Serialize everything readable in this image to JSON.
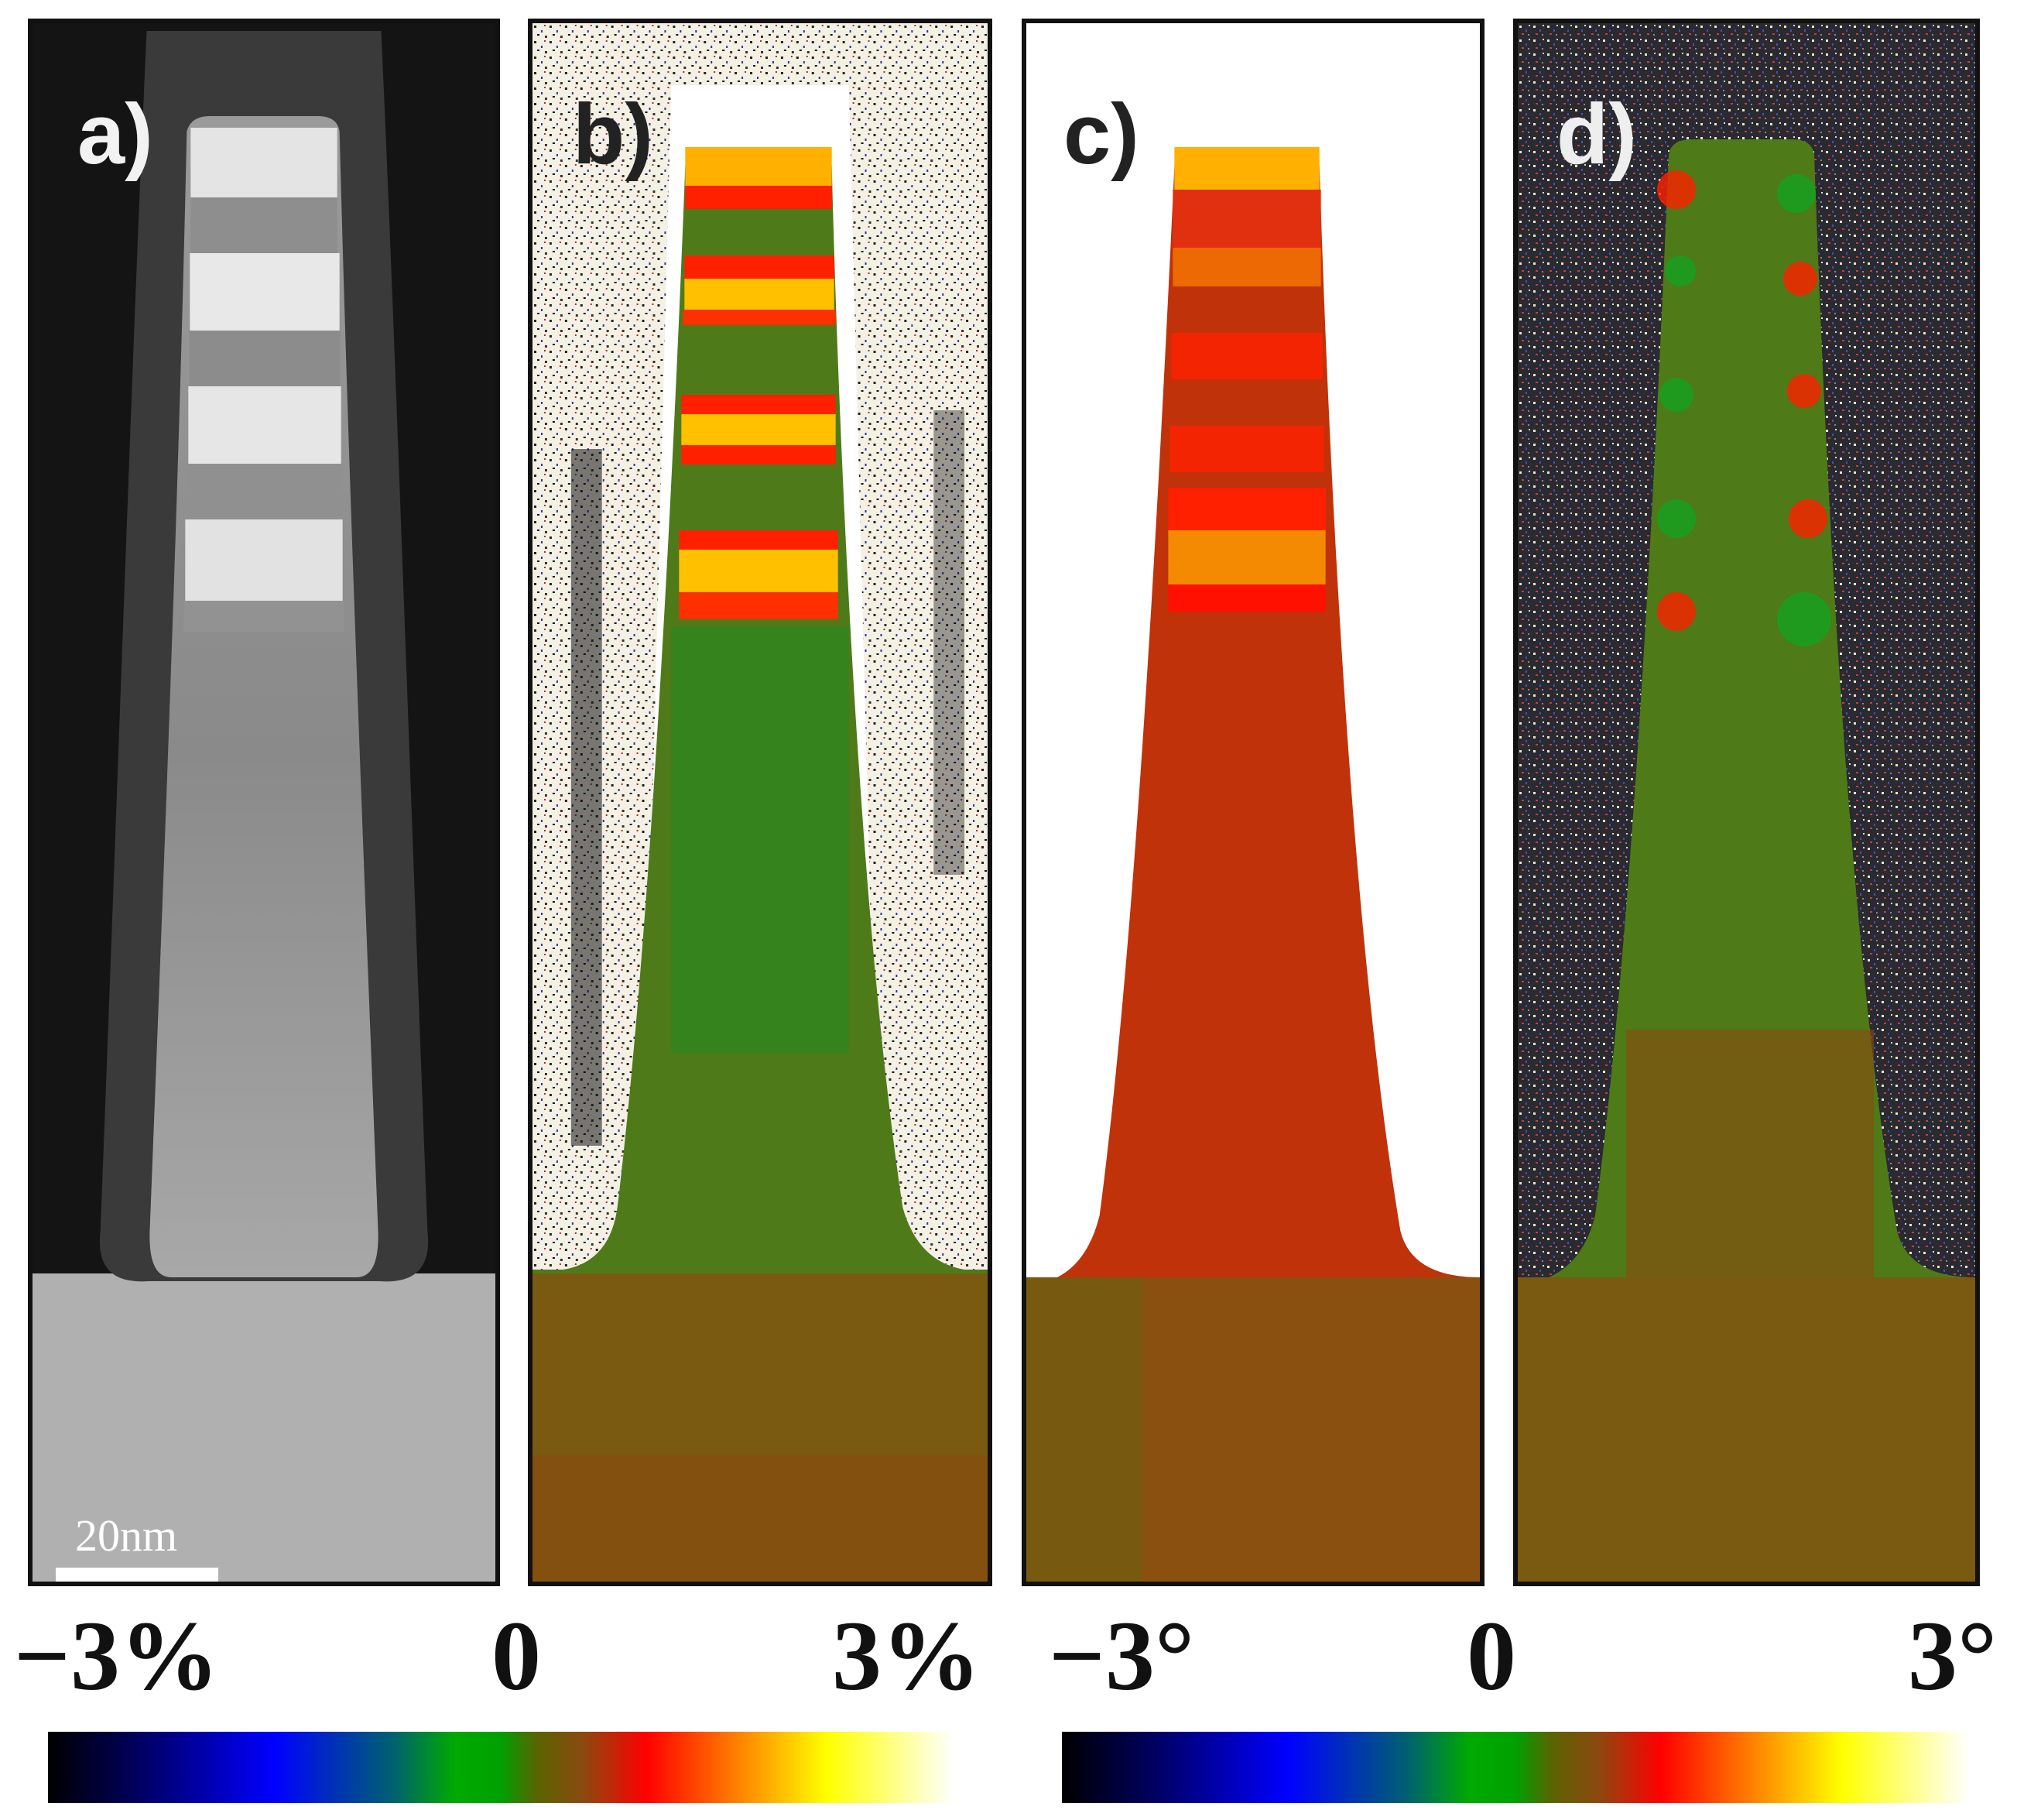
{
  "panels": [
    {
      "label": "a)",
      "scale_bar": "20nm"
    },
    {
      "label": "b)"
    },
    {
      "label": "c)"
    },
    {
      "label": "d)"
    }
  ],
  "colorbars": [
    {
      "min": "−3%",
      "mid": "0",
      "max": "3%"
    },
    {
      "min": "−3°",
      "mid": "0",
      "max": "3°"
    }
  ],
  "colors": {
    "strain_low": "#000000",
    "zero": "#6a5a00",
    "strain_high": "#ffffff"
  }
}
